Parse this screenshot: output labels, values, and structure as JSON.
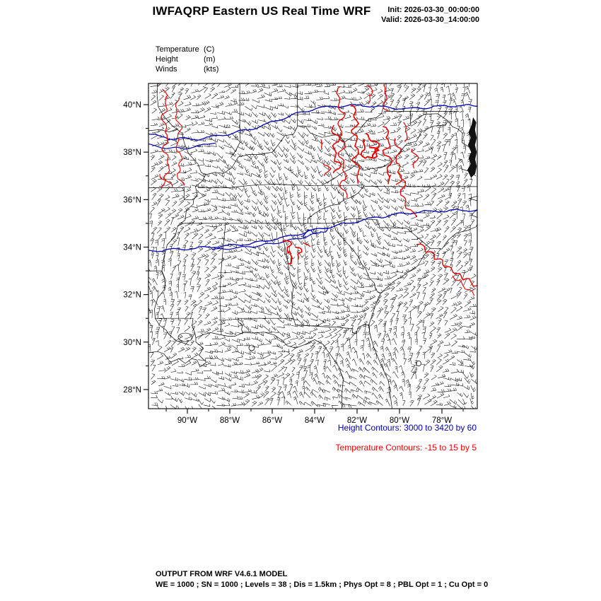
{
  "header": {
    "title": "IWFAQRP Eastern US Real Time WRF",
    "init": "Init: 2026-03-30_00:00:00",
    "valid": "Valid: 2026-03-30_14:00:00"
  },
  "legend": {
    "items": [
      {
        "name": "Temperature",
        "unit": "(C)"
      },
      {
        "name": "Height",
        "unit": "(m)"
      },
      {
        "name": "Winds",
        "unit": "(kts)"
      }
    ]
  },
  "axes": {
    "lat_ticks": [
      {
        "label": "40°N",
        "value": 40
      },
      {
        "label": "38°N",
        "value": 38
      },
      {
        "label": "36°N",
        "value": 36
      },
      {
        "label": "34°N",
        "value": 34
      },
      {
        "label": "32°N",
        "value": 32
      },
      {
        "label": "30°N",
        "value": 30
      },
      {
        "label": "28°N",
        "value": 28
      }
    ],
    "lon_ticks": [
      {
        "label": "90°W",
        "value": -90
      },
      {
        "label": "88°W",
        "value": -88
      },
      {
        "label": "86°W",
        "value": -86
      },
      {
        "label": "84°W",
        "value": -84
      },
      {
        "label": "82°W",
        "value": -82
      },
      {
        "label": "80°W",
        "value": -80
      },
      {
        "label": "78°W",
        "value": -78
      }
    ]
  },
  "captions": {
    "height": "Height Contours: 3000 to 3420 by 60",
    "temperature": "Temperature Contours: -15 to 15 by 5"
  },
  "footer": {
    "line1": "OUTPUT FROM WRF V4.6.1 MODEL",
    "line2": "WE = 1000 ; SN = 1000 ; Levels = 38 ; Dis = 1.5km ; Phys Opt = 8 ; PBL Opt = 1 ; Cu Opt = 0"
  },
  "colors": {
    "height_contour": "#0000b4",
    "temperature_contour": "#ee0000",
    "geography": "#000000",
    "wind_barbs": "#000000",
    "frame": "#000000"
  },
  "chart_data": {
    "type": "map",
    "title": "IWFAQRP Eastern US Real Time WRF",
    "init_time": "2026-03-30_00:00:00",
    "valid_time": "2026-03-30_14:00:00",
    "region": "Eastern / Southeastern United States",
    "lon_range": [
      "90°W",
      "78°W"
    ],
    "lat_range": [
      "28°N",
      "40°N"
    ],
    "fields": [
      {
        "name": "Temperature",
        "units": "C",
        "rendering": "red contours",
        "min": -15,
        "max": 15,
        "interval": 5
      },
      {
        "name": "Height",
        "units": "m",
        "rendering": "blue contours",
        "min": 3000,
        "max": 3420,
        "interval": 60
      },
      {
        "name": "Winds",
        "units": "kts",
        "rendering": "black wind barbs"
      }
    ],
    "model": "WRF V4.6.1",
    "model_settings": {
      "WE": 1000,
      "SN": 1000,
      "Levels": 38,
      "Dis": "1.5km",
      "Phys_Opt": 8,
      "PBL_Opt": 1,
      "Cu_Opt": 0
    }
  }
}
